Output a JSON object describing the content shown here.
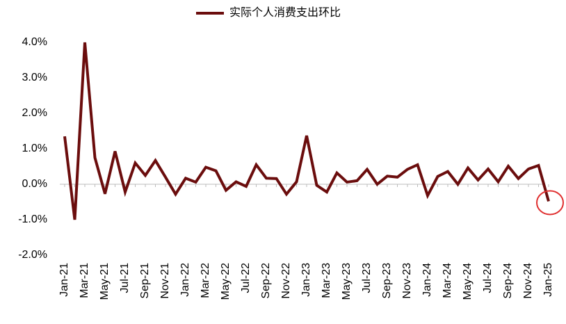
{
  "chart_data": {
    "type": "line",
    "categories": [
      "Jan-21",
      null,
      "Mar-21",
      null,
      "May-21",
      null,
      "Jul-21",
      null,
      "Sep-21",
      null,
      "Nov-21",
      null,
      "Jan-22",
      null,
      "Mar-22",
      null,
      "May-22",
      null,
      "Jul-22",
      null,
      "Sep-22",
      null,
      "Nov-22",
      null,
      "Jan-23",
      null,
      "Mar-23",
      null,
      "May-23",
      null,
      "Jul-23",
      null,
      "Sep-23",
      null,
      "Nov-23",
      null,
      "Jan-24",
      null,
      "Mar-24",
      null,
      "May-24",
      null,
      "Jul-24",
      null,
      "Sep-24",
      null,
      "Nov-24",
      null,
      "Jan-25"
    ],
    "series": [
      {
        "name": "实际个人消费支出环比",
        "color": "#6b0d0d",
        "values": [
          1.35,
          -1.0,
          4.0,
          0.75,
          -0.27,
          0.93,
          -0.22,
          0.6,
          0.25,
          0.67,
          0.2,
          -0.28,
          0.17,
          0.06,
          0.48,
          0.38,
          -0.17,
          0.07,
          -0.06,
          0.55,
          0.17,
          0.16,
          -0.28,
          0.07,
          1.37,
          -0.03,
          -0.22,
          0.32,
          0.06,
          0.1,
          0.42,
          0.0,
          0.23,
          0.2,
          0.42,
          0.55,
          -0.32,
          0.22,
          0.36,
          0.0,
          0.46,
          0.12,
          0.43,
          0.07,
          0.51,
          0.16,
          0.43,
          0.53,
          -0.48
        ]
      }
    ],
    "ylim": [
      -2,
      4
    ],
    "yticks": [
      {
        "value": -2,
        "label": "-2.0%"
      },
      {
        "value": -1,
        "label": "-1.0%"
      },
      {
        "value": 0,
        "label": "0.0%"
      },
      {
        "value": 1,
        "label": "1.0%"
      },
      {
        "value": 2,
        "label": "2.0%"
      },
      {
        "value": 3,
        "label": "3.0%"
      },
      {
        "value": 4,
        "label": "4.0%"
      }
    ],
    "legend": "top"
  }
}
